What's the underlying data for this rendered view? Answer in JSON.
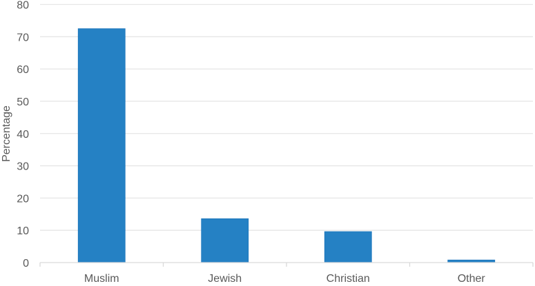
{
  "chart_data": {
    "type": "bar",
    "title": "",
    "xlabel": "",
    "ylabel": "Percentage",
    "categories": [
      "Muslim",
      "Jewish",
      "Christian",
      "Other"
    ],
    "values": [
      72.5,
      13.6,
      9.6,
      0.8
    ],
    "ylim": [
      0,
      80
    ],
    "yticks": [
      0,
      10,
      20,
      30,
      40,
      50,
      60,
      70,
      80
    ],
    "grid": true,
    "bar_color": "#2581C4",
    "grid_color": "#E6E6E6"
  }
}
